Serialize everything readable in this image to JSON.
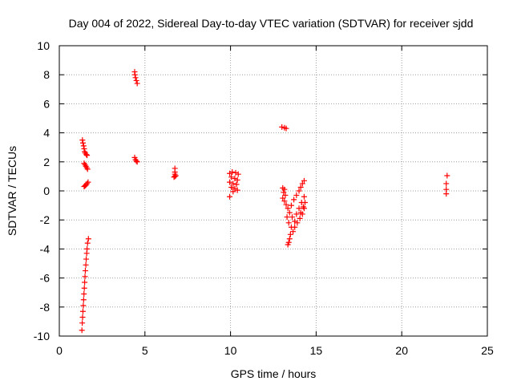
{
  "chart_data": {
    "type": "scatter",
    "title": "Day 004 of 2022, Sidereal Day-to-day VTEC variation (SDTVAR) for receiver sjdd",
    "xlabel": "GPS time / hours",
    "ylabel": "SDTVAR / TECUs",
    "xlim": [
      0,
      25
    ],
    "ylim": [
      -10,
      10
    ],
    "x_ticks": [
      0,
      5,
      10,
      15,
      20,
      25
    ],
    "y_ticks": [
      -10,
      -8,
      -6,
      -4,
      -2,
      0,
      2,
      4,
      6,
      8,
      10
    ],
    "grid": true,
    "marker": "plus",
    "color": "#ff0000",
    "series": [
      {
        "name": "SDTVAR",
        "points": [
          [
            1.35,
            3.5
          ],
          [
            1.38,
            3.3
          ],
          [
            1.42,
            3.1
          ],
          [
            1.45,
            2.9
          ],
          [
            1.48,
            2.7
          ],
          [
            1.52,
            2.6
          ],
          [
            1.58,
            2.5
          ],
          [
            1.62,
            2.45
          ],
          [
            1.45,
            1.9
          ],
          [
            1.5,
            1.8
          ],
          [
            1.55,
            1.7
          ],
          [
            1.6,
            1.6
          ],
          [
            1.65,
            1.5
          ],
          [
            1.45,
            0.3
          ],
          [
            1.5,
            0.35
          ],
          [
            1.55,
            0.4
          ],
          [
            1.62,
            0.5
          ],
          [
            1.68,
            0.6
          ],
          [
            1.7,
            -3.3
          ],
          [
            1.65,
            -3.6
          ],
          [
            1.62,
            -4.0
          ],
          [
            1.6,
            -4.3
          ],
          [
            1.57,
            -4.7
          ],
          [
            1.55,
            -5.1
          ],
          [
            1.52,
            -5.5
          ],
          [
            1.5,
            -5.9
          ],
          [
            1.48,
            -6.3
          ],
          [
            1.46,
            -6.7
          ],
          [
            1.44,
            -7.1
          ],
          [
            1.42,
            -7.5
          ],
          [
            1.4,
            -7.9
          ],
          [
            1.38,
            -8.3
          ],
          [
            1.36,
            -8.7
          ],
          [
            1.34,
            -9.1
          ],
          [
            1.32,
            -9.6
          ],
          [
            4.4,
            8.2
          ],
          [
            4.42,
            8.0
          ],
          [
            4.45,
            7.8
          ],
          [
            4.5,
            7.6
          ],
          [
            4.55,
            7.4
          ],
          [
            4.4,
            2.3
          ],
          [
            4.45,
            2.15
          ],
          [
            4.5,
            2.05
          ],
          [
            4.55,
            2.0
          ],
          [
            6.75,
            1.55
          ],
          [
            6.75,
            1.3
          ],
          [
            6.75,
            1.15
          ],
          [
            6.75,
            1.0
          ],
          [
            6.7,
            0.95
          ],
          [
            6.8,
            1.05
          ],
          [
            9.95,
            -0.4
          ],
          [
            9.95,
            1.2
          ],
          [
            10.1,
            1.3
          ],
          [
            10.3,
            1.25
          ],
          [
            10.45,
            1.15
          ],
          [
            10.05,
            0.95
          ],
          [
            10.25,
            0.85
          ],
          [
            10.4,
            0.75
          ],
          [
            9.95,
            0.6
          ],
          [
            10.15,
            0.5
          ],
          [
            10.35,
            0.45
          ],
          [
            10.05,
            0.25
          ],
          [
            10.25,
            0.15
          ],
          [
            10.4,
            0.05
          ],
          [
            10.15,
            -0.05
          ],
          [
            13.0,
            4.4
          ],
          [
            13.15,
            4.35
          ],
          [
            13.25,
            4.3
          ],
          [
            13.05,
            0.2
          ],
          [
            13.15,
            0.1
          ],
          [
            13.1,
            -0.1
          ],
          [
            13.2,
            -0.3
          ],
          [
            13.05,
            -0.5
          ],
          [
            13.15,
            -0.7
          ],
          [
            13.25,
            -0.95
          ],
          [
            13.35,
            -1.2
          ],
          [
            13.45,
            -1.5
          ],
          [
            13.6,
            -1.8
          ],
          [
            13.75,
            -2.1
          ],
          [
            13.85,
            -1.6
          ],
          [
            14.0,
            -1.2
          ],
          [
            14.15,
            -0.8
          ],
          [
            14.3,
            -0.4
          ],
          [
            14.35,
            -0.8
          ],
          [
            14.3,
            -1.2
          ],
          [
            14.2,
            -1.6
          ],
          [
            14.05,
            -1.9
          ],
          [
            13.9,
            -2.2
          ],
          [
            13.75,
            -2.5
          ],
          [
            13.65,
            -2.8
          ],
          [
            13.5,
            -3.0
          ],
          [
            13.45,
            -3.3
          ],
          [
            13.4,
            -3.55
          ],
          [
            13.35,
            -3.7
          ],
          [
            13.55,
            -1.0
          ],
          [
            13.7,
            -0.6
          ],
          [
            13.85,
            -0.3
          ],
          [
            14.0,
            0.0
          ],
          [
            14.1,
            0.25
          ],
          [
            14.2,
            0.5
          ],
          [
            14.3,
            0.7
          ],
          [
            13.3,
            -1.8
          ],
          [
            13.4,
            -2.2
          ],
          [
            13.55,
            -2.5
          ],
          [
            14.1,
            -1.5
          ],
          [
            14.25,
            -1.1
          ],
          [
            22.65,
            1.05
          ],
          [
            22.6,
            0.5
          ],
          [
            22.6,
            0.1
          ],
          [
            22.6,
            -0.2
          ]
        ]
      }
    ]
  }
}
